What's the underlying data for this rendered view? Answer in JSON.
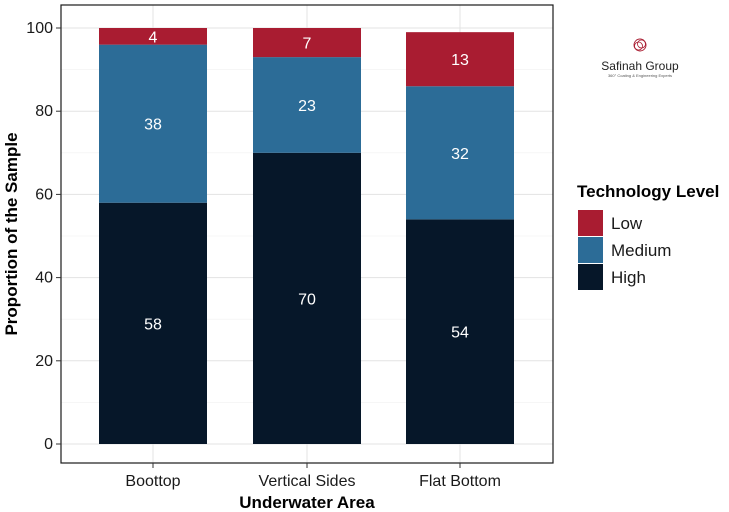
{
  "chart_data": {
    "type": "bar",
    "stacked": true,
    "categories": [
      "Boottop",
      "Vertical Sides",
      "Flat Bottom"
    ],
    "series": [
      {
        "name": "High",
        "values": [
          58,
          70,
          54
        ],
        "color": "#061729"
      },
      {
        "name": "Medium",
        "values": [
          38,
          23,
          32
        ],
        "color": "#2c6c97"
      },
      {
        "name": "Low",
        "values": [
          4,
          7,
          13
        ],
        "color": "#a91c31"
      }
    ],
    "xlabel": "Underwater Area",
    "ylabel": "Proportion of the Sample",
    "ylim": [
      0,
      100
    ],
    "yticks": [
      0,
      20,
      40,
      60,
      80,
      100
    ],
    "grid": true,
    "legend": {
      "title": "Technology Level",
      "placement": "right",
      "order": [
        "Low",
        "Medium",
        "High"
      ]
    }
  },
  "logo": {
    "name": "Safinah Group",
    "tagline": "360° Coating & Engineering Experts",
    "color": "#a91c31"
  }
}
